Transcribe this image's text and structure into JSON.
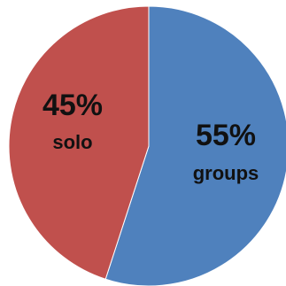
{
  "chart_data": {
    "type": "pie",
    "title": "",
    "slices": [
      {
        "label": "groups",
        "value": 55,
        "value_label": "55%",
        "color": "#4f81bd"
      },
      {
        "label": "solo",
        "value": 45,
        "value_label": "45%",
        "color": "#c0504d"
      }
    ],
    "start": "top",
    "direction": "clockwise",
    "legend": "none"
  }
}
